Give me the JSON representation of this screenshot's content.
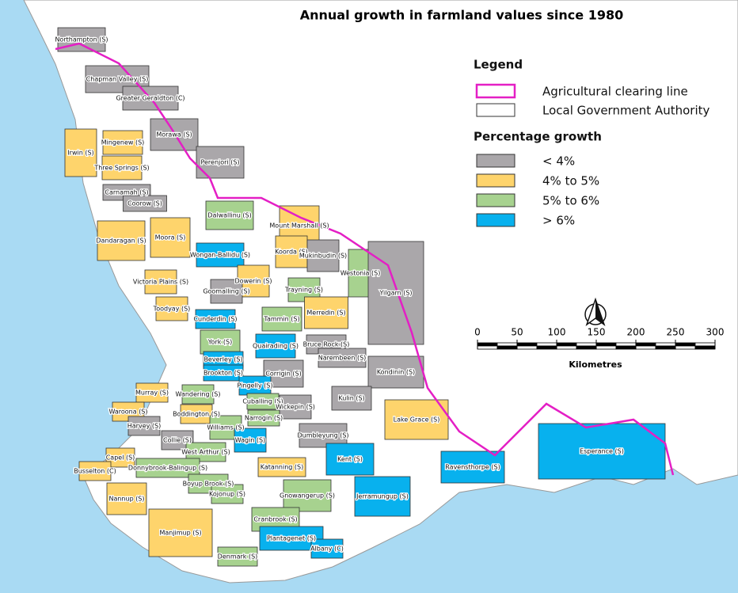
{
  "title": "Annual growth in farmland values since 1980",
  "legend": {
    "title": "Legend",
    "items": [
      {
        "label": "Agricultural clearing line",
        "color": "#e41fc5"
      },
      {
        "label": "Local Government Authority",
        "color": "#ffffff"
      }
    ]
  },
  "growth": {
    "title": "Percentage growth",
    "classes": [
      {
        "label": "< 4%",
        "color": "#aaa7aa"
      },
      {
        "label": "4% to 5%",
        "color": "#fed46c"
      },
      {
        "label": "5% to 6%",
        "color": "#a7d28f"
      },
      {
        "label": "> 6%",
        "color": "#08b1ee"
      }
    ]
  },
  "scale": {
    "ticks": [
      0,
      50,
      100,
      150,
      200,
      250,
      300
    ],
    "unit": "Kilometres"
  },
  "regions": [
    {
      "name": "Northampton (S)",
      "class": 0
    },
    {
      "name": "Chapman Valley (S)",
      "class": 0
    },
    {
      "name": "Greater Geraldton (C)",
      "class": 0
    },
    {
      "name": "Morawa (S)",
      "class": 0
    },
    {
      "name": "Mingenew (S)",
      "class": 1
    },
    {
      "name": "Irwin (S)",
      "class": 1
    },
    {
      "name": "Perenjori (S)",
      "class": 0
    },
    {
      "name": "Three Springs (S)",
      "class": 1
    },
    {
      "name": "Carnamah (S)",
      "class": 0
    },
    {
      "name": "Coorow (S)",
      "class": 0
    },
    {
      "name": "Dalwallinu (S)",
      "class": 2
    },
    {
      "name": "Mount Marshall (S)",
      "class": 1
    },
    {
      "name": "Dandaragan (S)",
      "class": 1
    },
    {
      "name": "Moora (S)",
      "class": 1
    },
    {
      "name": "Koorda (S)",
      "class": 1
    },
    {
      "name": "Wongan-Ballidu (S)",
      "class": 3
    },
    {
      "name": "Mukinbudin (S)",
      "class": 0
    },
    {
      "name": "Westonia (S)",
      "class": 2
    },
    {
      "name": "Yilgarn (S)",
      "class": 0
    },
    {
      "name": "Victoria Plains (S)",
      "class": 1
    },
    {
      "name": "Dowerin (S)",
      "class": 1
    },
    {
      "name": "Goomalling (S)",
      "class": 0
    },
    {
      "name": "Trayning (S)",
      "class": 2
    },
    {
      "name": "Toodyay (S)",
      "class": 1
    },
    {
      "name": "Merredin (S)",
      "class": 1
    },
    {
      "name": "Cunderdin (S)",
      "class": 3
    },
    {
      "name": "Tammin (S)",
      "class": 2
    },
    {
      "name": "York (S)",
      "class": 2
    },
    {
      "name": "Quairading (S)",
      "class": 3
    },
    {
      "name": "Bruce Rock (S)",
      "class": 0
    },
    {
      "name": "Beverley (S)",
      "class": 3
    },
    {
      "name": "Narembeen (S)",
      "class": 0
    },
    {
      "name": "Brookton (S)",
      "class": 3
    },
    {
      "name": "Corrigin (S)",
      "class": 0
    },
    {
      "name": "Kondinin (S)",
      "class": 0
    },
    {
      "name": "Pingelly (S)",
      "class": 3
    },
    {
      "name": "Murray (S)",
      "class": 1
    },
    {
      "name": "Wandering (S)",
      "class": 2
    },
    {
      "name": "Kulin (S)",
      "class": 0
    },
    {
      "name": "Cuballing (S)",
      "class": 2
    },
    {
      "name": "Wickepin (S)",
      "class": 0
    },
    {
      "name": "Waroona (S)",
      "class": 1
    },
    {
      "name": "Boddington (S)",
      "class": 1
    },
    {
      "name": "Narrogin (S)",
      "class": 2
    },
    {
      "name": "Lake Grace (S)",
      "class": 1
    },
    {
      "name": "Harvey (S)",
      "class": 0
    },
    {
      "name": "Williams (S)",
      "class": 2
    },
    {
      "name": "Dumbleyung (S)",
      "class": 0
    },
    {
      "name": "Esperance (S)",
      "class": 3
    },
    {
      "name": "Collie (S)",
      "class": 0
    },
    {
      "name": "Wagin (S)",
      "class": 3
    },
    {
      "name": "West Arthur (S)",
      "class": 2
    },
    {
      "name": "Capel (S)",
      "class": 1
    },
    {
      "name": "Kent (S)",
      "class": 3
    },
    {
      "name": "Ravensthorpe (S)",
      "class": 3
    },
    {
      "name": "Katanning (S)",
      "class": 1
    },
    {
      "name": "Donnybrook-Balingup (S)",
      "class": 2
    },
    {
      "name": "Busselton (C)",
      "class": 1
    },
    {
      "name": "Boyup Brook (S)",
      "class": 2
    },
    {
      "name": "Kojonup (S)",
      "class": 2
    },
    {
      "name": "Gnowangerup (S)",
      "class": 2
    },
    {
      "name": "Jerramungup (S)",
      "class": 3
    },
    {
      "name": "Nannup (S)",
      "class": 1
    },
    {
      "name": "Cranbrook (S)",
      "class": 2
    },
    {
      "name": "Manjimup (S)",
      "class": 1
    },
    {
      "name": "Plantagenet (S)",
      "class": 3
    },
    {
      "name": "Albany (C)",
      "class": 3
    },
    {
      "name": "Denmark (S)",
      "class": 2
    }
  ]
}
